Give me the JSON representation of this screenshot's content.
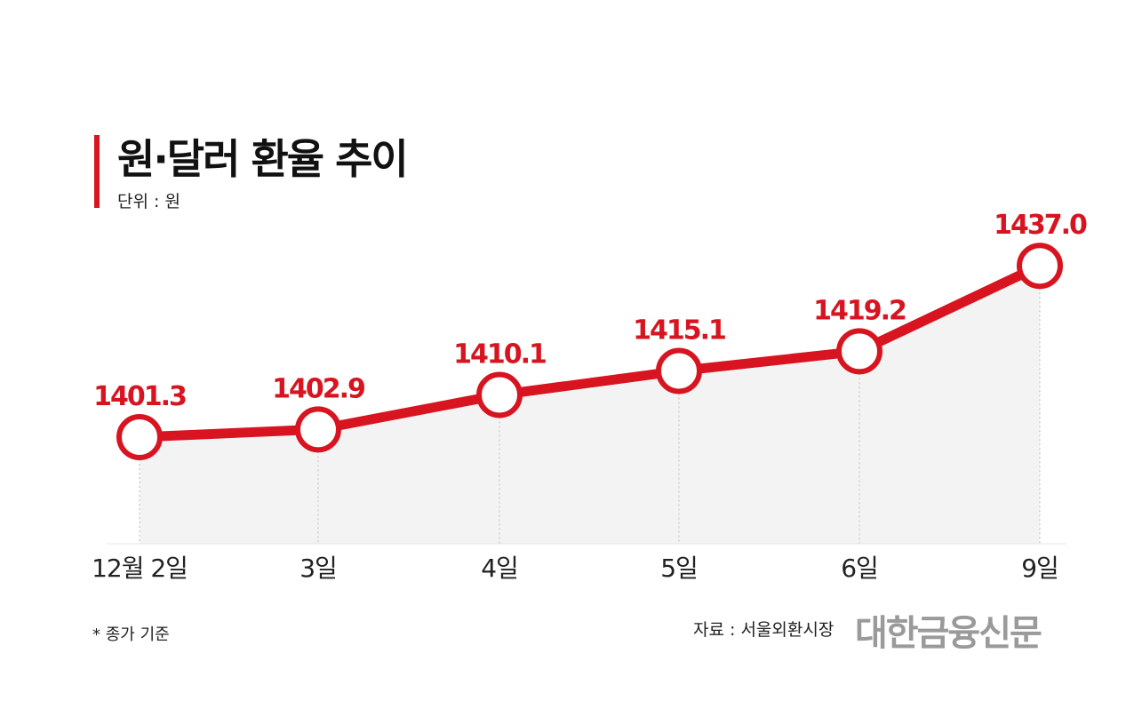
{
  "chart_data": {
    "type": "line",
    "title": "원·달러 환율 추이",
    "unit_label": "단위 : 원",
    "categories": [
      "12월 2일",
      "3일",
      "4일",
      "5일",
      "6일",
      "9일"
    ],
    "values": [
      1401.3,
      1402.9,
      1410.1,
      1415.1,
      1419.2,
      1437.0
    ],
    "value_labels": [
      "1401.3",
      "1402.9",
      "1410.1",
      "1415.1",
      "1419.2",
      "1437.0"
    ],
    "ylim": [
      1395,
      1440
    ],
    "grid": false,
    "legend": "none",
    "colors": {
      "line": "#d7141f",
      "area": "#f3f3f3",
      "marker_fill": "#ffffff"
    }
  },
  "footnote": "* 종가 기준",
  "source": "자료 : 서울외환시장",
  "brand": "대한금융신문"
}
